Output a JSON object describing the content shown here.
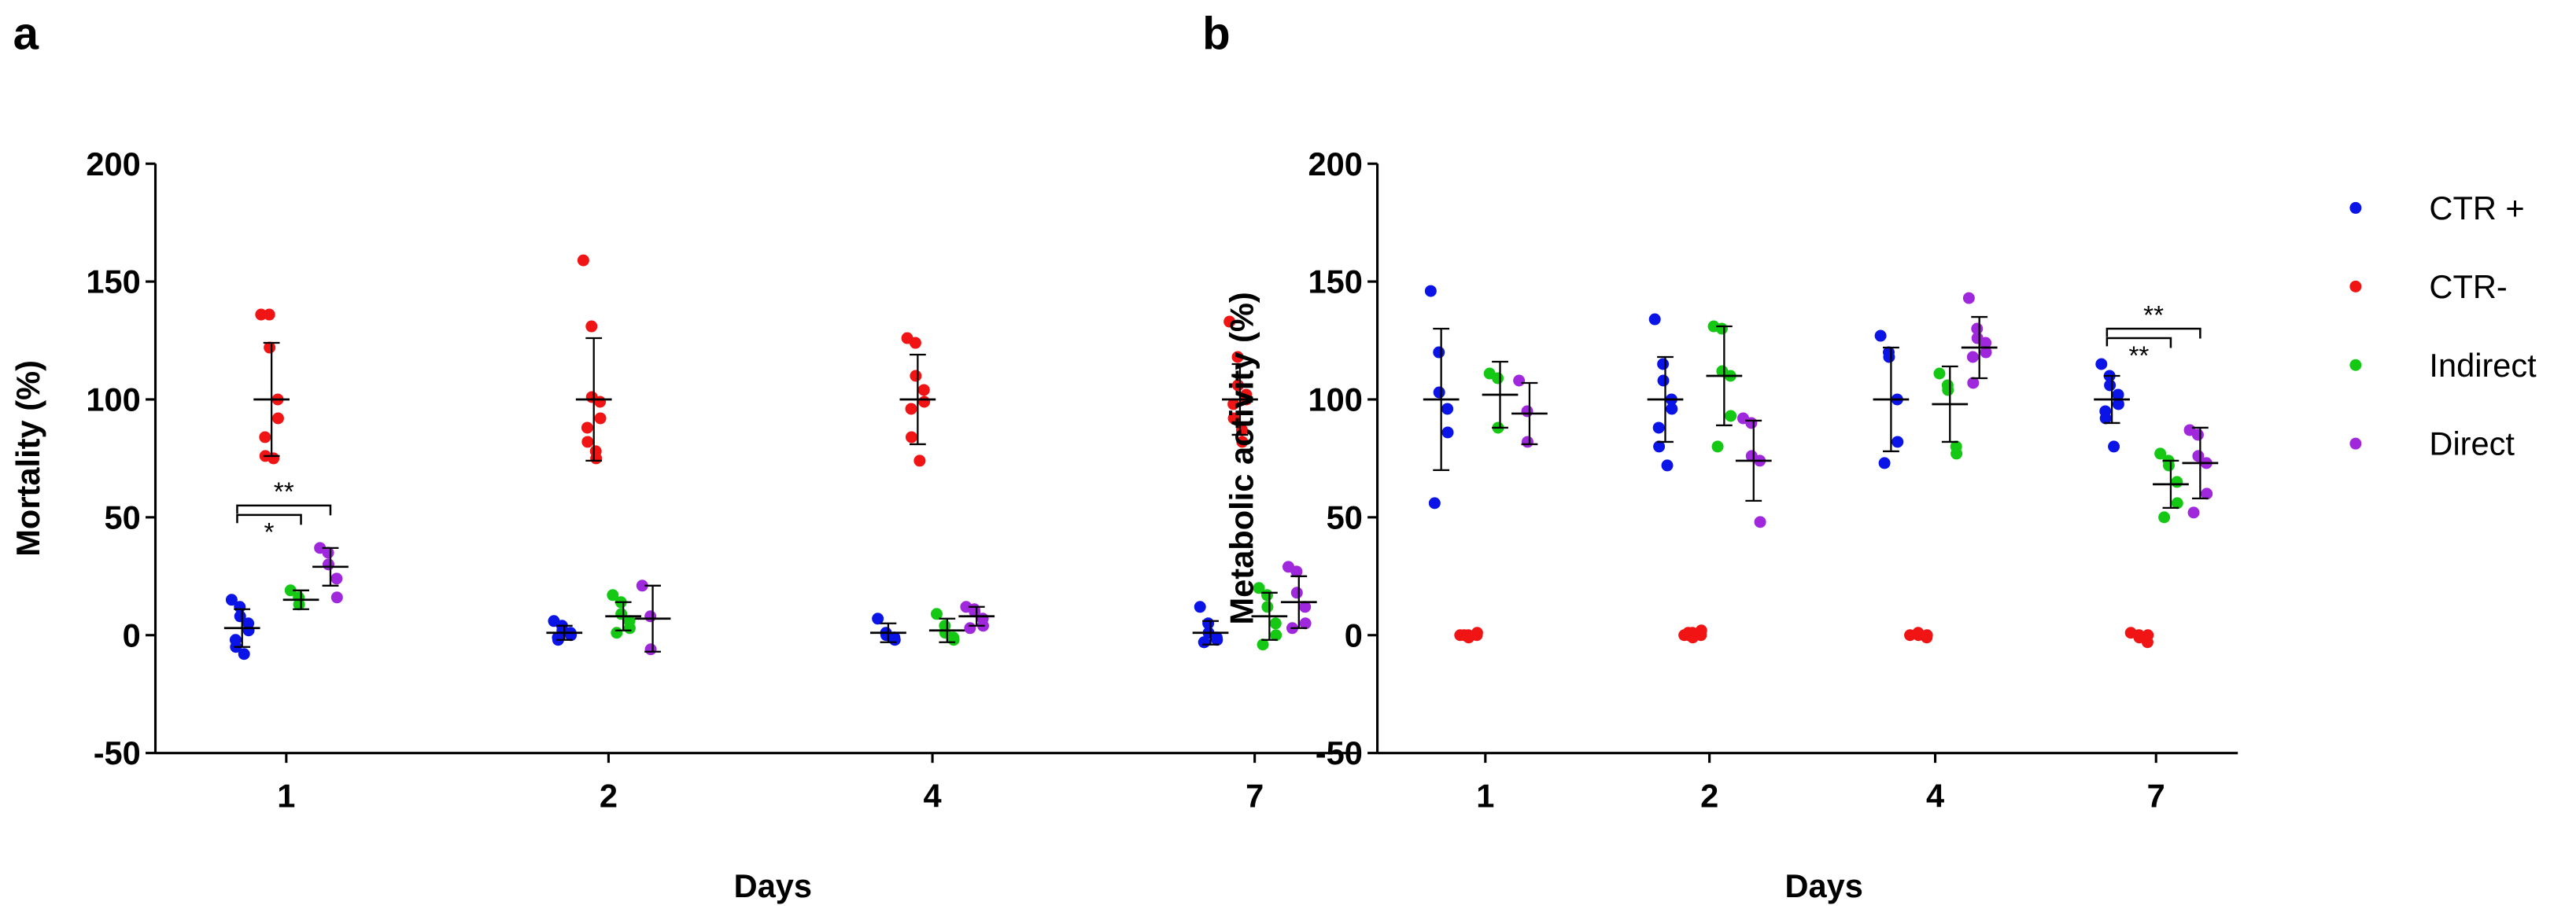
{
  "chart_data": [
    {
      "type": "scatter",
      "panel": "a",
      "ylabel": "Mortality (%)",
      "xlabel": "Days",
      "categories": [
        "1",
        "2",
        "4",
        "7"
      ],
      "ylim": [
        -50,
        200
      ],
      "yticks": [
        -50,
        0,
        50,
        100,
        150,
        200
      ],
      "series": [
        {
          "color": "#0a14e6",
          "values": [
            [
              15,
              12,
              8,
              5,
              2,
              -2,
              -5,
              -8
            ],
            [
              6,
              4,
              2,
              1,
              0,
              -1,
              -2
            ],
            [
              7,
              1,
              0,
              -1,
              -2
            ],
            [
              12,
              5,
              1,
              -1,
              -2,
              -3,
              -3
            ]
          ],
          "mean": [
            3,
            1,
            1,
            1
          ],
          "sd": [
            8,
            3,
            4,
            5
          ]
        },
        {
          "color": "#f01414",
          "values": [
            [
              136,
              136,
              122,
              100,
              92,
              84,
              76,
              75
            ],
            [
              159,
              131,
              101,
              99,
              92,
              88,
              82,
              78,
              75
            ],
            [
              126,
              124,
              110,
              104,
              99,
              96,
              84,
              74
            ],
            [
              133,
              118,
              106,
              102,
              100,
              98,
              92,
              87,
              82
            ]
          ],
          "mean": [
            100,
            100,
            100,
            100
          ],
          "sd": [
            24,
            26,
            19,
            15
          ]
        },
        {
          "color": "#14c814",
          "values": [
            [
              19,
              16,
              13
            ],
            [
              17,
              14,
              9,
              6,
              3,
              1
            ],
            [
              9,
              4,
              1,
              -1,
              -2
            ],
            [
              20,
              17,
              12,
              5,
              0,
              -4
            ]
          ],
          "mean": [
            15,
            8,
            2,
            8
          ],
          "sd": [
            4,
            6,
            5,
            10
          ]
        },
        {
          "color": "#a028dc",
          "values": [
            [
              37,
              35,
              30,
              24,
              16
            ],
            [
              21,
              8,
              -6
            ],
            [
              12,
              11,
              10,
              7,
              4,
              3
            ],
            [
              29,
              27,
              18,
              12,
              5,
              3
            ]
          ],
          "mean": [
            29,
            7,
            8,
            14
          ],
          "sd": [
            8,
            14,
            4,
            11
          ]
        }
      ],
      "annotations": [
        {
          "category": 0,
          "between": [
            0,
            3
          ],
          "y": 55,
          "label": "**",
          "label_side": "above"
        },
        {
          "category": 0,
          "between": [
            0,
            2
          ],
          "y": 51,
          "label": "*",
          "label_side": "below"
        }
      ]
    },
    {
      "type": "scatter",
      "panel": "b",
      "ylabel": "Metabolic activity (%)",
      "xlabel": "Days",
      "categories": [
        "1",
        "2",
        "4",
        "7"
      ],
      "ylim": [
        -50,
        200
      ],
      "yticks": [
        -50,
        0,
        50,
        100,
        150,
        200
      ],
      "legend": "right",
      "series": [
        {
          "name": "CTR +",
          "color": "#0a14e6",
          "values": [
            [
              146,
              120,
              103,
              96,
              86,
              56
            ],
            [
              134,
              115,
              108,
              100,
              96,
              88,
              80,
              72
            ],
            [
              127,
              120,
              118,
              100,
              82,
              73
            ],
            [
              115,
              110,
              106,
              102,
              98,
              95,
              92,
              80
            ]
          ],
          "mean": [
            100,
            100,
            100,
            100
          ],
          "sd": [
            30,
            18,
            22,
            10
          ]
        },
        {
          "name": "CTR-",
          "color": "#f01414",
          "values": [
            [
              0,
              0,
              -1,
              0,
              1,
              0
            ],
            [
              0,
              1,
              -1,
              0,
              2,
              1,
              0
            ],
            [
              0,
              1,
              0,
              -1,
              0
            ],
            [
              1,
              0,
              -1,
              -3,
              0
            ]
          ]
        },
        {
          "name": "Indirect",
          "color": "#14c814",
          "values": [
            [
              111,
              109,
              88
            ],
            [
              131,
              130,
              112,
              110,
              93,
              80
            ],
            [
              111,
              106,
              104,
              80,
              77
            ],
            [
              77,
              74,
              72,
              65,
              56,
              50
            ]
          ],
          "mean": [
            102,
            110,
            98,
            64
          ],
          "sd": [
            14,
            21,
            16,
            10
          ]
        },
        {
          "name": "Direct",
          "color": "#a028dc",
          "values": [
            [
              108,
              95,
              82
            ],
            [
              92,
              90,
              76,
              74,
              48
            ],
            [
              143,
              130,
              126,
              124,
              120,
              118,
              107
            ],
            [
              87,
              85,
              76,
              73,
              60,
              52
            ]
          ],
          "mean": [
            94,
            74,
            122,
            73
          ],
          "sd": [
            13,
            17,
            13,
            15
          ]
        }
      ],
      "annotations": [
        {
          "category": 3,
          "between": [
            0,
            3
          ],
          "y": 130,
          "label": "**",
          "label_side": "above"
        },
        {
          "category": 3,
          "between": [
            0,
            2
          ],
          "y": 126,
          "label": "**",
          "label_side": "below"
        }
      ]
    }
  ]
}
